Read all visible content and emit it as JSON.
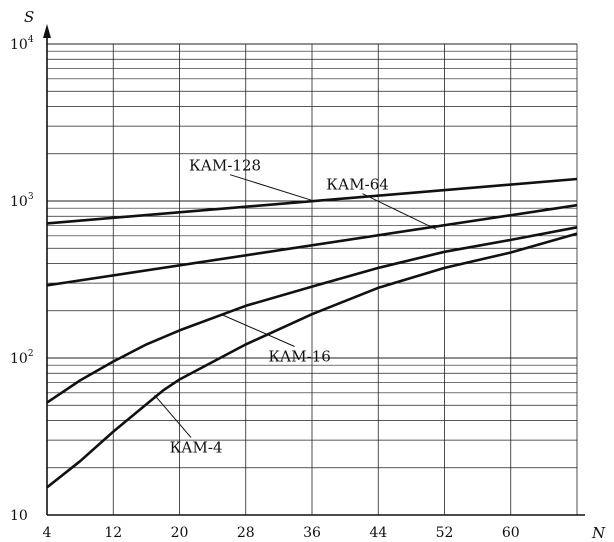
{
  "chart_data": {
    "type": "line",
    "title": "",
    "xlabel": "N",
    "ylabel": "S",
    "y_scale": "log",
    "xlim": [
      4,
      68
    ],
    "ylim": [
      10,
      10000
    ],
    "grid": true,
    "x_ticks": [
      "4",
      "12",
      "20",
      "28",
      "36",
      "44",
      "52",
      "60"
    ],
    "y_ticks": [
      {
        "base": "10",
        "exp": "4",
        "value": 10000
      },
      {
        "base": "10",
        "exp": "3",
        "value": 1000
      },
      {
        "base": "10",
        "exp": "2",
        "value": 100
      },
      {
        "base": "10",
        "exp": "",
        "value": 10
      }
    ],
    "series": [
      {
        "name": "КАМ-128",
        "x": [
          4,
          68
        ],
        "y": [
          720,
          1380
        ]
      },
      {
        "name": "КАМ-64",
        "x": [
          4,
          68
        ],
        "y": [
          290,
          940
        ]
      },
      {
        "name": "КАМ-16",
        "x": [
          4,
          8,
          12,
          16,
          20,
          28,
          36,
          44,
          52,
          60,
          68
        ],
        "y": [
          52,
          72,
          95,
          122,
          150,
          215,
          285,
          375,
          475,
          565,
          680
        ]
      },
      {
        "name": "КАМ-4",
        "x": [
          4,
          8,
          12,
          18,
          20,
          28,
          36,
          44,
          52,
          60,
          68
        ],
        "y": [
          15,
          22,
          34,
          62,
          73,
          122,
          190,
          280,
          375,
          470,
          620
        ]
      }
    ]
  }
}
